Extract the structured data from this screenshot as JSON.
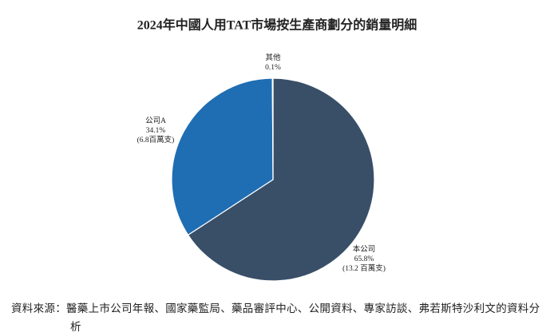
{
  "chart_data": {
    "type": "pie",
    "title": "2024年中國人用TAT市場按生產商劃分的銷量明細",
    "categories": [
      "本公司",
      "公司A",
      "其他"
    ],
    "values": [
      65.8,
      34.1,
      0.1
    ],
    "value_labels": [
      "65.8%",
      "34.1%",
      "0.1%"
    ],
    "detail_labels": [
      "(13.2 百萬支)",
      "(6.8百萬支)",
      null
    ],
    "colors": [
      "#394f68",
      "#1f6db3",
      "#8fb4d9"
    ]
  },
  "source": "資料來源：醫藥上市公司年報、國家藥監局、藥品審評中心、公開資料、專家訪談、弗若斯特沙利文的資料分析"
}
